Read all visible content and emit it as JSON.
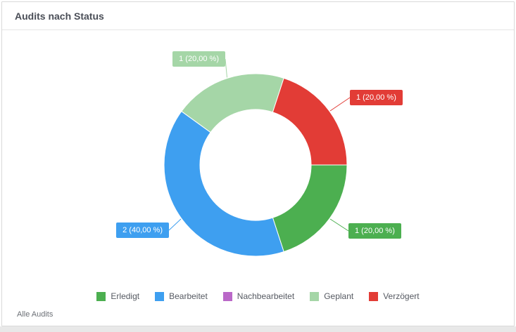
{
  "card": {
    "title": "Audits nach Status",
    "footer_link": "Alle Audits"
  },
  "chart_data": {
    "type": "pie",
    "subtype": "donut",
    "title": "Audits nach Status",
    "total": 5,
    "start_angle_deg": 90,
    "direction": "clockwise",
    "legend_position": "bottom",
    "number_format": "de-DE",
    "slices": [
      {
        "name": "Erledigt",
        "value": 1,
        "percent": 20,
        "label": "1 (20,00 %)",
        "color": "#4caf50"
      },
      {
        "name": "Bearbeitet",
        "value": 2,
        "percent": 40,
        "label": "2 (40,00 %)",
        "color": "#3e9ff0"
      },
      {
        "name": "Nachbearbeitet",
        "value": 0,
        "percent": 0,
        "label": null,
        "color": "#ba68c8"
      },
      {
        "name": "Geplant",
        "value": 1,
        "percent": 20,
        "label": "1 (20,00 %)",
        "color": "#a5d6a7"
      },
      {
        "name": "Verzögert",
        "value": 1,
        "percent": 20,
        "label": "1 (20,00 %)",
        "color": "#e23c36"
      }
    ]
  }
}
